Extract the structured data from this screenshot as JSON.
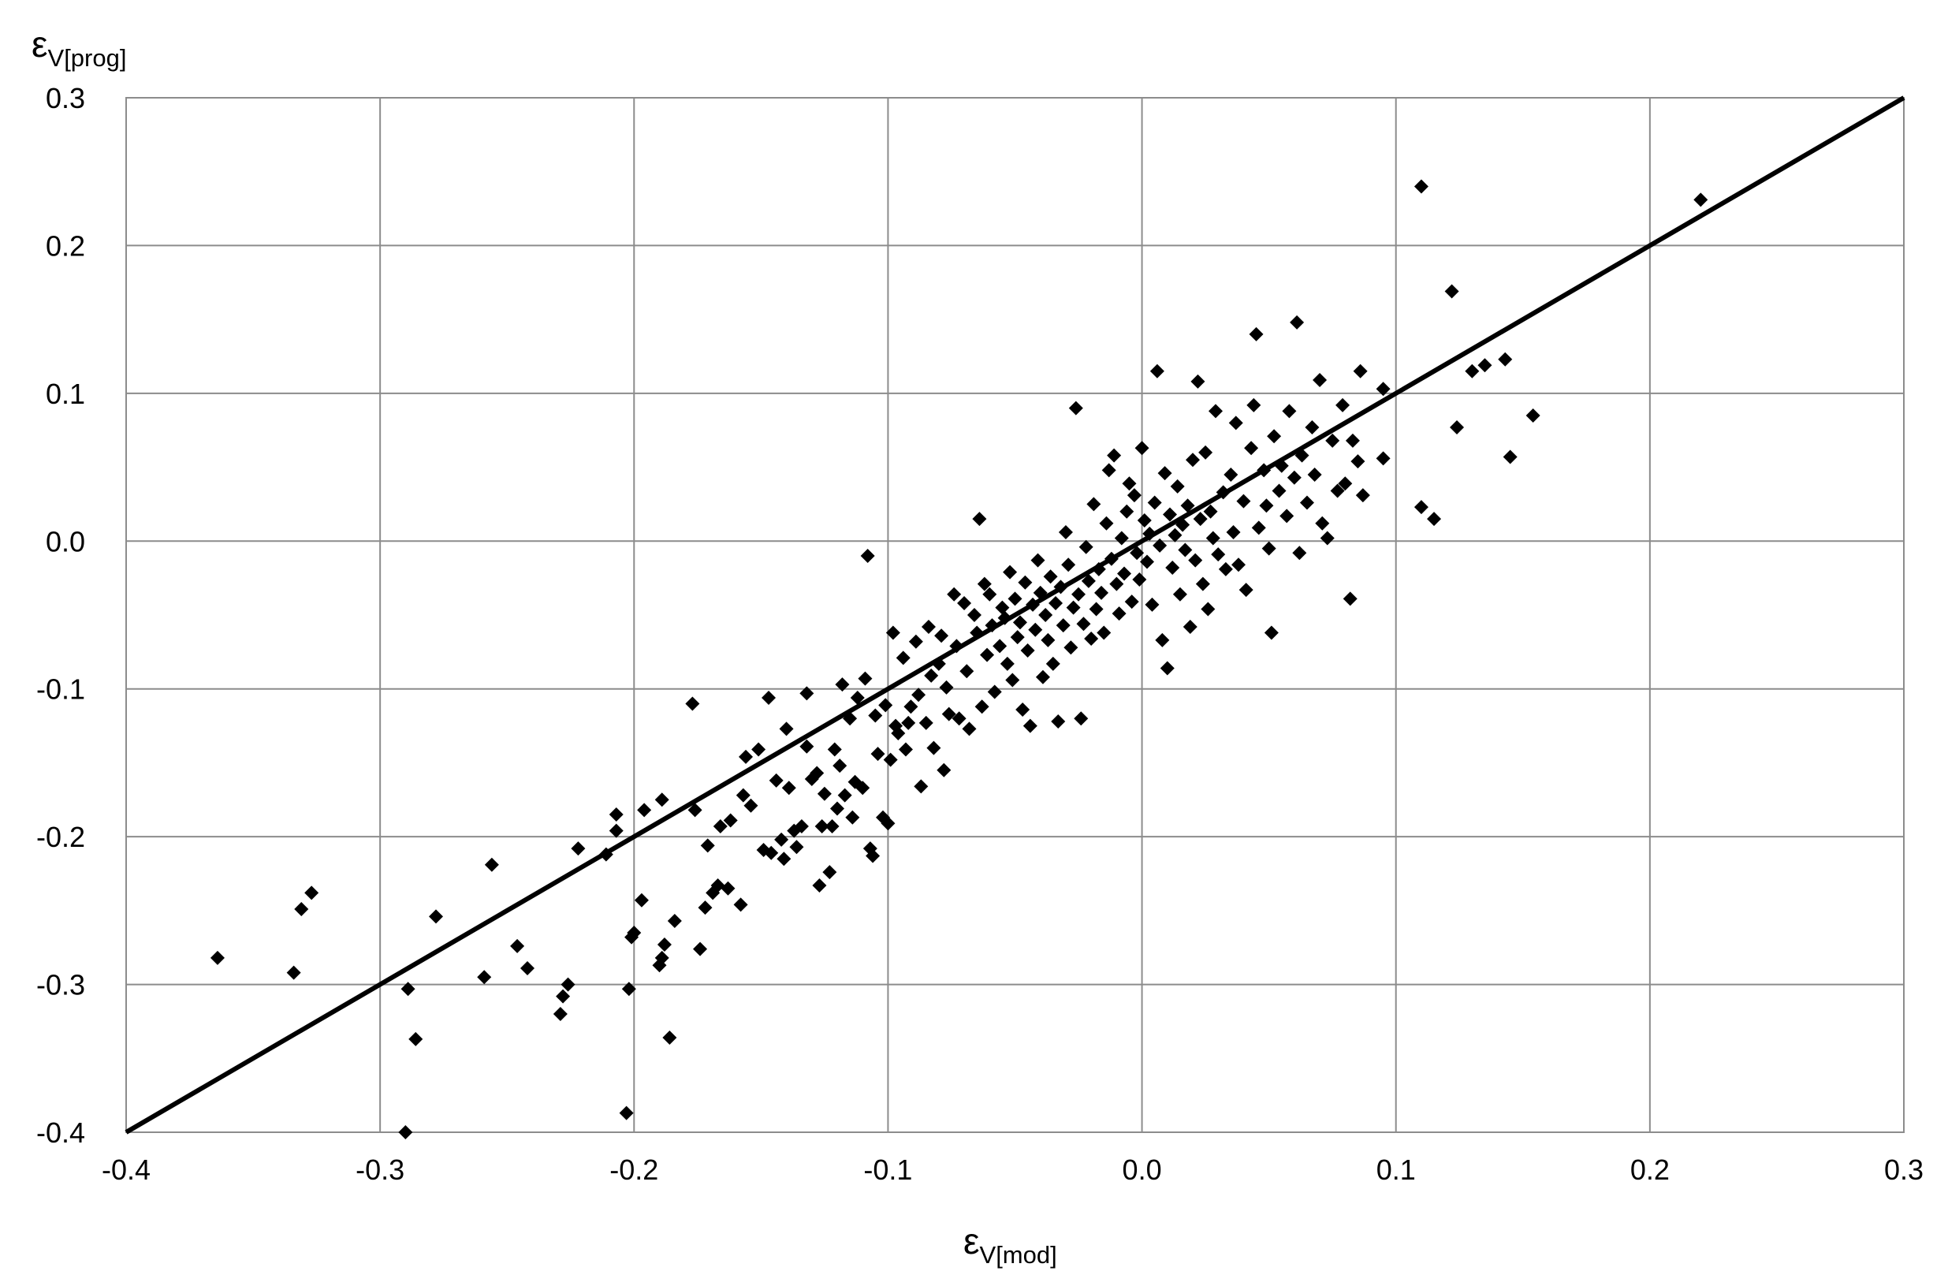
{
  "chart_data": {
    "type": "scatter",
    "xlabel": {
      "symbol": "ε",
      "subscript": "V[mod]"
    },
    "ylabel": {
      "symbol": "ε",
      "subscript": "V[prog]"
    },
    "xlim": [
      -0.4,
      0.3
    ],
    "ylim": [
      -0.4,
      0.3
    ],
    "x_ticks": [
      "-0.4",
      "-0.3",
      "-0.2",
      "-0.1",
      "0.0",
      "0.1",
      "0.2",
      "0.3"
    ],
    "y_ticks": [
      "0.3",
      "0.2",
      "0.1",
      "0.0",
      "-0.1",
      "-0.2",
      "-0.3",
      "-0.4"
    ],
    "x_tick_values": [
      -0.4,
      -0.3,
      -0.2,
      -0.1,
      0.0,
      0.1,
      0.2,
      0.3
    ],
    "y_tick_values": [
      0.3,
      0.2,
      0.1,
      0.0,
      -0.1,
      -0.2,
      -0.3,
      -0.4
    ],
    "grid": true,
    "marker": "diamond",
    "colors": {
      "points": "#000000",
      "line": "#000000",
      "grid": "#8c8c8c",
      "background": "#ffffff"
    },
    "reference_line": {
      "type": "y=x",
      "from": [
        -0.4,
        -0.4
      ],
      "to": [
        0.3,
        0.3
      ]
    },
    "points": [
      [
        -0.364,
        -0.282
      ],
      [
        -0.334,
        -0.292
      ],
      [
        -0.331,
        -0.249
      ],
      [
        -0.327,
        -0.238
      ],
      [
        -0.29,
        -0.4
      ],
      [
        -0.289,
        -0.303
      ],
      [
        -0.286,
        -0.337
      ],
      [
        -0.278,
        -0.254
      ],
      [
        -0.259,
        -0.295
      ],
      [
        -0.256,
        -0.219
      ],
      [
        -0.246,
        -0.274
      ],
      [
        -0.242,
        -0.289
      ],
      [
        -0.229,
        -0.32
      ],
      [
        -0.228,
        -0.308
      ],
      [
        -0.226,
        -0.3
      ],
      [
        -0.222,
        -0.208
      ],
      [
        -0.211,
        -0.212
      ],
      [
        -0.207,
        -0.185
      ],
      [
        -0.207,
        -0.196
      ],
      [
        -0.203,
        -0.387
      ],
      [
        -0.202,
        -0.303
      ],
      [
        -0.201,
        -0.268
      ],
      [
        -0.2,
        -0.265
      ],
      [
        -0.197,
        -0.243
      ],
      [
        -0.196,
        -0.182
      ],
      [
        -0.19,
        -0.287
      ],
      [
        -0.189,
        -0.282
      ],
      [
        -0.188,
        -0.273
      ],
      [
        -0.189,
        -0.175
      ],
      [
        -0.186,
        -0.336
      ],
      [
        -0.184,
        -0.257
      ],
      [
        -0.177,
        -0.11
      ],
      [
        -0.176,
        -0.182
      ],
      [
        -0.174,
        -0.276
      ],
      [
        -0.172,
        -0.248
      ],
      [
        -0.171,
        -0.206
      ],
      [
        -0.169,
        -0.238
      ],
      [
        -0.167,
        -0.233
      ],
      [
        -0.166,
        -0.193
      ],
      [
        -0.163,
        -0.235
      ],
      [
        -0.162,
        -0.189
      ],
      [
        -0.158,
        -0.246
      ],
      [
        -0.157,
        -0.172
      ],
      [
        -0.156,
        -0.146
      ],
      [
        -0.154,
        -0.179
      ],
      [
        -0.151,
        -0.141
      ],
      [
        -0.149,
        -0.209
      ],
      [
        -0.147,
        -0.106
      ],
      [
        -0.146,
        -0.211
      ],
      [
        -0.144,
        -0.162
      ],
      [
        -0.142,
        -0.202
      ],
      [
        -0.141,
        -0.215
      ],
      [
        -0.14,
        -0.127
      ],
      [
        -0.139,
        -0.167
      ],
      [
        -0.137,
        -0.196
      ],
      [
        -0.136,
        -0.207
      ],
      [
        -0.132,
        -0.139
      ],
      [
        -0.134,
        -0.193
      ],
      [
        -0.132,
        -0.103
      ],
      [
        -0.13,
        -0.161
      ],
      [
        -0.128,
        -0.157
      ],
      [
        -0.127,
        -0.233
      ],
      [
        -0.126,
        -0.193
      ],
      [
        -0.125,
        -0.171
      ],
      [
        -0.123,
        -0.224
      ],
      [
        -0.122,
        -0.193
      ],
      [
        -0.121,
        -0.141
      ],
      [
        -0.12,
        -0.181
      ],
      [
        -0.119,
        -0.152
      ],
      [
        -0.118,
        -0.097
      ],
      [
        -0.117,
        -0.172
      ],
      [
        -0.115,
        -0.12
      ],
      [
        -0.114,
        -0.187
      ],
      [
        -0.113,
        -0.163
      ],
      [
        -0.112,
        -0.106
      ],
      [
        -0.11,
        -0.167
      ],
      [
        -0.109,
        -0.093
      ],
      [
        -0.108,
        -0.01
      ],
      [
        -0.107,
        -0.208
      ],
      [
        -0.106,
        -0.213
      ],
      [
        -0.105,
        -0.118
      ],
      [
        -0.104,
        -0.144
      ],
      [
        -0.102,
        -0.187
      ],
      [
        -0.101,
        -0.111
      ],
      [
        -0.1,
        -0.191
      ],
      [
        -0.099,
        -0.148
      ],
      [
        -0.098,
        -0.062
      ],
      [
        -0.097,
        -0.125
      ],
      [
        -0.096,
        -0.13
      ],
      [
        -0.094,
        -0.079
      ],
      [
        -0.093,
        -0.141
      ],
      [
        -0.092,
        -0.123
      ],
      [
        -0.091,
        -0.112
      ],
      [
        -0.089,
        -0.068
      ],
      [
        -0.088,
        -0.104
      ],
      [
        -0.087,
        -0.166
      ],
      [
        -0.085,
        -0.123
      ],
      [
        -0.084,
        -0.058
      ],
      [
        -0.083,
        -0.091
      ],
      [
        -0.082,
        -0.14
      ],
      [
        -0.08,
        -0.083
      ],
      [
        -0.079,
        -0.064
      ],
      [
        -0.078,
        -0.155
      ],
      [
        -0.077,
        -0.099
      ],
      [
        -0.076,
        -0.117
      ],
      [
        -0.074,
        -0.036
      ],
      [
        -0.073,
        -0.071
      ],
      [
        -0.072,
        -0.12
      ],
      [
        -0.07,
        -0.042
      ],
      [
        -0.069,
        -0.088
      ],
      [
        -0.068,
        -0.127
      ],
      [
        -0.066,
        -0.05
      ],
      [
        -0.065,
        -0.062
      ],
      [
        -0.064,
        0.015
      ],
      [
        -0.063,
        -0.112
      ],
      [
        -0.062,
        -0.029
      ],
      [
        -0.061,
        -0.077
      ],
      [
        -0.06,
        -0.036
      ],
      [
        -0.059,
        -0.057
      ],
      [
        -0.058,
        -0.102
      ],
      [
        -0.056,
        -0.071
      ],
      [
        -0.055,
        -0.045
      ],
      [
        -0.054,
        -0.052
      ],
      [
        -0.053,
        -0.083
      ],
      [
        -0.052,
        -0.021
      ],
      [
        -0.051,
        -0.094
      ],
      [
        -0.05,
        -0.039
      ],
      [
        -0.049,
        -0.065
      ],
      [
        -0.048,
        -0.055
      ],
      [
        -0.047,
        -0.114
      ],
      [
        -0.046,
        -0.028
      ],
      [
        -0.045,
        -0.074
      ],
      [
        -0.044,
        -0.125
      ],
      [
        -0.043,
        -0.043
      ],
      [
        -0.042,
        -0.06
      ],
      [
        -0.041,
        -0.013
      ],
      [
        -0.04,
        -0.035
      ],
      [
        -0.039,
        -0.092
      ],
      [
        -0.038,
        -0.05
      ],
      [
        -0.037,
        -0.067
      ],
      [
        -0.036,
        -0.024
      ],
      [
        -0.035,
        -0.083
      ],
      [
        -0.034,
        -0.042
      ],
      [
        -0.033,
        -0.122
      ],
      [
        -0.032,
        -0.031
      ],
      [
        -0.031,
        -0.057
      ],
      [
        -0.03,
        0.006
      ],
      [
        -0.029,
        -0.016
      ],
      [
        -0.028,
        -0.072
      ],
      [
        -0.027,
        -0.045
      ],
      [
        -0.026,
        0.09
      ],
      [
        -0.025,
        -0.036
      ],
      [
        -0.024,
        -0.12
      ],
      [
        -0.023,
        -0.056
      ],
      [
        -0.022,
        -0.004
      ],
      [
        -0.021,
        -0.027
      ],
      [
        -0.02,
        -0.066
      ],
      [
        -0.019,
        0.025
      ],
      [
        -0.018,
        -0.046
      ],
      [
        -0.017,
        -0.019
      ],
      [
        -0.016,
        -0.035
      ],
      [
        -0.015,
        -0.062
      ],
      [
        -0.014,
        0.012
      ],
      [
        -0.013,
        0.048
      ],
      [
        -0.012,
        -0.012
      ],
      [
        -0.011,
        0.058
      ],
      [
        -0.01,
        -0.029
      ],
      [
        -0.009,
        -0.049
      ],
      [
        -0.008,
        0.002
      ],
      [
        -0.007,
        -0.022
      ],
      [
        -0.006,
        0.02
      ],
      [
        -0.005,
        0.039
      ],
      [
        -0.004,
        -0.041
      ],
      [
        -0.003,
        0.031
      ],
      [
        -0.002,
        -0.008
      ],
      [
        -0.001,
        -0.026
      ],
      [
        0.0,
        0.063
      ],
      [
        0.001,
        0.014
      ],
      [
        0.002,
        -0.014
      ],
      [
        0.003,
        0.005
      ],
      [
        0.004,
        -0.043
      ],
      [
        0.005,
        0.026
      ],
      [
        0.006,
        0.115
      ],
      [
        0.007,
        -0.003
      ],
      [
        0.008,
        -0.067
      ],
      [
        0.009,
        0.046
      ],
      [
        0.01,
        -0.086
      ],
      [
        0.011,
        0.018
      ],
      [
        0.012,
        -0.018
      ],
      [
        0.013,
        0.004
      ],
      [
        0.014,
        0.037
      ],
      [
        0.015,
        -0.036
      ],
      [
        0.016,
        0.011
      ],
      [
        0.017,
        -0.006
      ],
      [
        0.018,
        0.024
      ],
      [
        0.019,
        -0.058
      ],
      [
        0.02,
        0.055
      ],
      [
        0.021,
        -0.013
      ],
      [
        0.022,
        0.108
      ],
      [
        0.023,
        0.015
      ],
      [
        0.024,
        -0.029
      ],
      [
        0.025,
        0.06
      ],
      [
        0.026,
        -0.046
      ],
      [
        0.027,
        0.02
      ],
      [
        0.028,
        0.002
      ],
      [
        0.029,
        0.088
      ],
      [
        0.03,
        -0.009
      ],
      [
        0.032,
        0.033
      ],
      [
        0.033,
        -0.019
      ],
      [
        0.035,
        0.045
      ],
      [
        0.036,
        0.006
      ],
      [
        0.037,
        0.08
      ],
      [
        0.038,
        -0.016
      ],
      [
        0.04,
        0.027
      ],
      [
        0.041,
        -0.033
      ],
      [
        0.043,
        0.063
      ],
      [
        0.044,
        0.092
      ],
      [
        0.045,
        0.14
      ],
      [
        0.046,
        0.009
      ],
      [
        0.048,
        0.048
      ],
      [
        0.049,
        0.024
      ],
      [
        0.05,
        -0.005
      ],
      [
        0.051,
        -0.062
      ],
      [
        0.052,
        0.071
      ],
      [
        0.054,
        0.034
      ],
      [
        0.055,
        0.051
      ],
      [
        0.057,
        0.017
      ],
      [
        0.058,
        0.088
      ],
      [
        0.06,
        0.043
      ],
      [
        0.061,
        0.148
      ],
      [
        0.062,
        -0.008
      ],
      [
        0.063,
        0.058
      ],
      [
        0.065,
        0.026
      ],
      [
        0.067,
        0.077
      ],
      [
        0.068,
        0.045
      ],
      [
        0.07,
        0.109
      ],
      [
        0.071,
        0.012
      ],
      [
        0.073,
        0.002
      ],
      [
        0.075,
        0.068
      ],
      [
        0.077,
        0.034
      ],
      [
        0.079,
        0.092
      ],
      [
        0.08,
        0.039
      ],
      [
        0.082,
        -0.039
      ],
      [
        0.083,
        0.068
      ],
      [
        0.085,
        0.054
      ],
      [
        0.086,
        0.115
      ],
      [
        0.087,
        0.031
      ],
      [
        0.095,
        0.103
      ],
      [
        0.095,
        0.056
      ],
      [
        0.11,
        0.24
      ],
      [
        0.11,
        0.023
      ],
      [
        0.115,
        0.015
      ],
      [
        0.122,
        0.169
      ],
      [
        0.124,
        0.077
      ],
      [
        0.13,
        0.115
      ],
      [
        0.135,
        0.119
      ],
      [
        0.143,
        0.123
      ],
      [
        0.145,
        0.057
      ],
      [
        0.154,
        0.085
      ],
      [
        0.22,
        0.231
      ]
    ]
  }
}
